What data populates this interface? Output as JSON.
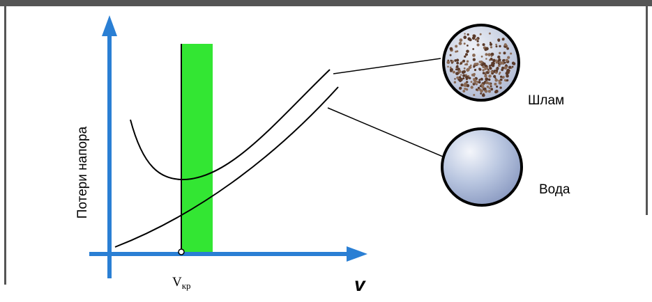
{
  "labels": {
    "y_axis": "Потери напора",
    "critical_velocity": "V",
    "critical_velocity_subscript": "кр",
    "x_axis": "v",
    "slurry": "Шлам",
    "water": "Вода"
  }
}
